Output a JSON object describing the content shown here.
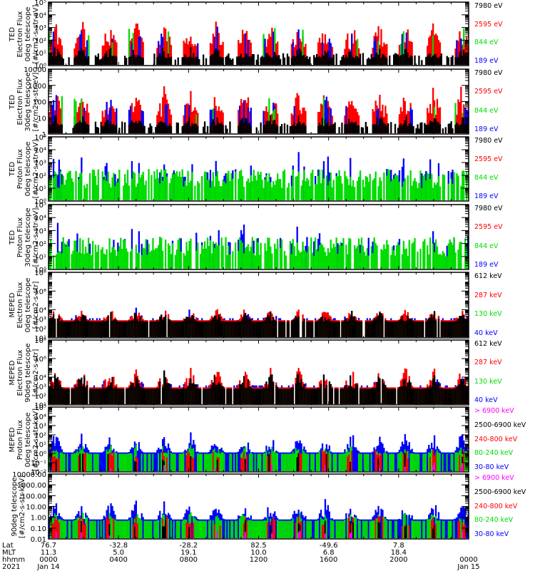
{
  "chart_data": {
    "type": "bar",
    "time_axis": {
      "rows": [
        {
          "name": "Lat",
          "values": [
            "76.7",
            "-32.8",
            "-28.2",
            "82.5",
            "-49.6",
            "7.8",
            ""
          ]
        },
        {
          "name": "MLT",
          "values": [
            "11.3",
            "5.0",
            "19.1",
            "10.0",
            "6.8",
            "18.4",
            ""
          ]
        },
        {
          "name": "hhmm",
          "values": [
            "0000",
            "0400",
            "0800",
            "1200",
            "1600",
            "2000",
            "0000"
          ]
        },
        {
          "name": "2021",
          "values": [
            "Jan 14",
            "",
            "",
            "",
            "",
            "",
            "Jan 15"
          ]
        }
      ],
      "range_hours": [
        0,
        24
      ]
    },
    "panels": [
      {
        "ylabel": [
          "TED",
          "Electron Flux",
          "0deg telescope",
          "[#/cm2-s-str-eV]"
        ],
        "scale": "log",
        "ylim": [
          1,
          100000
        ],
        "ticks": [
          "10⁵",
          "10⁴",
          "10³",
          "10²",
          "10¹",
          "10⁰"
        ],
        "tick_values": [
          100000,
          10000,
          1000,
          100,
          10,
          1
        ],
        "legend": [
          {
            "label": "7980 eV",
            "color": "#000000"
          },
          {
            "label": "2595 eV",
            "color": "#ff0000"
          },
          {
            "label": "844 eV",
            "color": "#00dd00"
          },
          {
            "label": "189 eV",
            "color": "#0000ff"
          }
        ],
        "profile": "ted_e"
      },
      {
        "ylabel": [
          "TED",
          "Electron Flux",
          "30deg telescope",
          "[#/cm2-s-str-eV]"
        ],
        "scale": "log",
        "ylim": [
          1,
          10000
        ],
        "ticks": [
          "10000",
          "1000",
          "100",
          "10",
          "1"
        ],
        "tick_values": [
          10000,
          1000,
          100,
          10,
          1
        ],
        "legend": [
          {
            "label": "7980 eV",
            "color": "#000000"
          },
          {
            "label": "2595 eV",
            "color": "#ff0000"
          },
          {
            "label": "844 eV",
            "color": "#00dd00"
          },
          {
            "label": "189 eV",
            "color": "#0000ff"
          }
        ],
        "profile": "ted_e"
      },
      {
        "ylabel": [
          "TED",
          "Proton Flux",
          "0deg telescope",
          "[#/cm2-s-str-eV]"
        ],
        "scale": "log",
        "ylim": [
          1,
          100000
        ],
        "ticks": [
          "10⁵",
          "10⁴",
          "10³",
          "10²",
          "10¹",
          "10⁰"
        ],
        "tick_values": [
          100000,
          10000,
          1000,
          100,
          10,
          1
        ],
        "legend": [
          {
            "label": "7980 eV",
            "color": "#000000"
          },
          {
            "label": "2595 eV",
            "color": "#ff0000"
          },
          {
            "label": "844 eV",
            "color": "#00dd00"
          },
          {
            "label": "189 eV",
            "color": "#0000ff"
          }
        ],
        "profile": "ted_p"
      },
      {
        "ylabel": [
          "TED",
          "Proton Flux",
          "30deg telescope",
          "[#/cm2-s-str-eV]"
        ],
        "scale": "log",
        "ylim": [
          1,
          100000
        ],
        "ticks": [
          "10⁵",
          "10⁴",
          "10³",
          "10²",
          "10¹",
          "10⁰"
        ],
        "tick_values": [
          100000,
          10000,
          1000,
          100,
          10,
          1
        ],
        "legend": [
          {
            "label": "7980 eV",
            "color": "#000000"
          },
          {
            "label": "2595 eV",
            "color": "#ff0000"
          },
          {
            "label": "844 eV",
            "color": "#00dd00"
          },
          {
            "label": "189 eV",
            "color": "#0000ff"
          }
        ],
        "profile": "ted_p"
      },
      {
        "ylabel": [
          "MEPED",
          "Electron Flux",
          "0deg telescope",
          "[#/cm2-s-str]"
        ],
        "scale": "log",
        "ylim": [
          10,
          100000000
        ],
        "ticks": [
          "10⁸",
          "10⁶",
          "10⁴",
          "10³",
          "10²",
          "10¹"
        ],
        "tick_values": [
          100000000,
          1000000,
          10000,
          1000,
          100,
          10
        ],
        "legend": [
          {
            "label": "612 keV",
            "color": "#000000"
          },
          {
            "label": "287 keV",
            "color": "#ff0000"
          },
          {
            "label": "130 keV",
            "color": "#00dd00"
          },
          {
            "label": "40 keV",
            "color": "#0000ff"
          }
        ],
        "profile": "meped_e0"
      },
      {
        "ylabel": [
          "MEPED",
          "Electron Flux",
          "90deg telescope",
          "[#/cm2-s-str]"
        ],
        "scale": "log",
        "ylim": [
          10,
          100000000
        ],
        "ticks": [
          "10⁸",
          "10⁶",
          "10⁴",
          "10³",
          "10²",
          "10¹"
        ],
        "tick_values": [
          100000000,
          1000000,
          10000,
          1000,
          100,
          10
        ],
        "legend": [
          {
            "label": "612 keV",
            "color": "#000000"
          },
          {
            "label": "287 keV",
            "color": "#ff0000"
          },
          {
            "label": "130 keV",
            "color": "#00dd00"
          },
          {
            "label": "40 keV",
            "color": "#0000ff"
          }
        ],
        "profile": "meped_e90"
      },
      {
        "ylabel": [
          "MEPED",
          "Proton Flux",
          "0deg telescope",
          "[#/cm2-s-str-keV]"
        ],
        "scale": "log",
        "ylim": [
          0.01,
          100000
        ],
        "ticks": [
          "10⁵",
          "10⁴",
          "10³",
          "10²",
          "10¹",
          "10⁰",
          "10⁻¹",
          "10⁻²"
        ],
        "tick_values": [
          100000,
          10000,
          1000,
          100,
          10,
          1,
          0.1,
          0.01
        ],
        "legend": [
          {
            "label": "> 6900 keV",
            "color": "#ff00ff"
          },
          {
            "label": "2500-6900 keV",
            "color": "#000000"
          },
          {
            "label": "240-800 keV",
            "color": "#ff0000"
          },
          {
            "label": "80-240 keV",
            "color": "#00dd00"
          },
          {
            "label": "30-80 keV",
            "color": "#0000ff"
          }
        ],
        "profile": "meped_p"
      },
      {
        "ylabel": [
          "90deg telescope",
          "[#/cm2-s-str-keV]"
        ],
        "scale": "log",
        "ylim": [
          0.01,
          10000
        ],
        "ticks": [
          "10000.00",
          "1000.00",
          "100.00",
          "10.00",
          "1.00",
          "0.10",
          "0.01"
        ],
        "tick_values": [
          10000,
          1000,
          100,
          10,
          1,
          0.1,
          0.01
        ],
        "legend": [
          {
            "label": "> 6900 keV",
            "color": "#ff00ff"
          },
          {
            "label": "2500-6900 keV",
            "color": "#000000"
          },
          {
            "label": "240-800 keV",
            "color": "#ff0000"
          },
          {
            "label": "80-240 keV",
            "color": "#00dd00"
          },
          {
            "label": "30-80 keV",
            "color": "#0000ff"
          }
        ],
        "profile": "meped_p"
      }
    ],
    "pass_centers_hours": [
      0.4,
      1.9,
      3.5,
      5.0,
      6.6,
      8.1,
      9.6,
      11.2,
      12.7,
      14.3,
      15.8,
      17.3,
      18.9,
      20.4,
      22.0,
      23.6
    ]
  }
}
